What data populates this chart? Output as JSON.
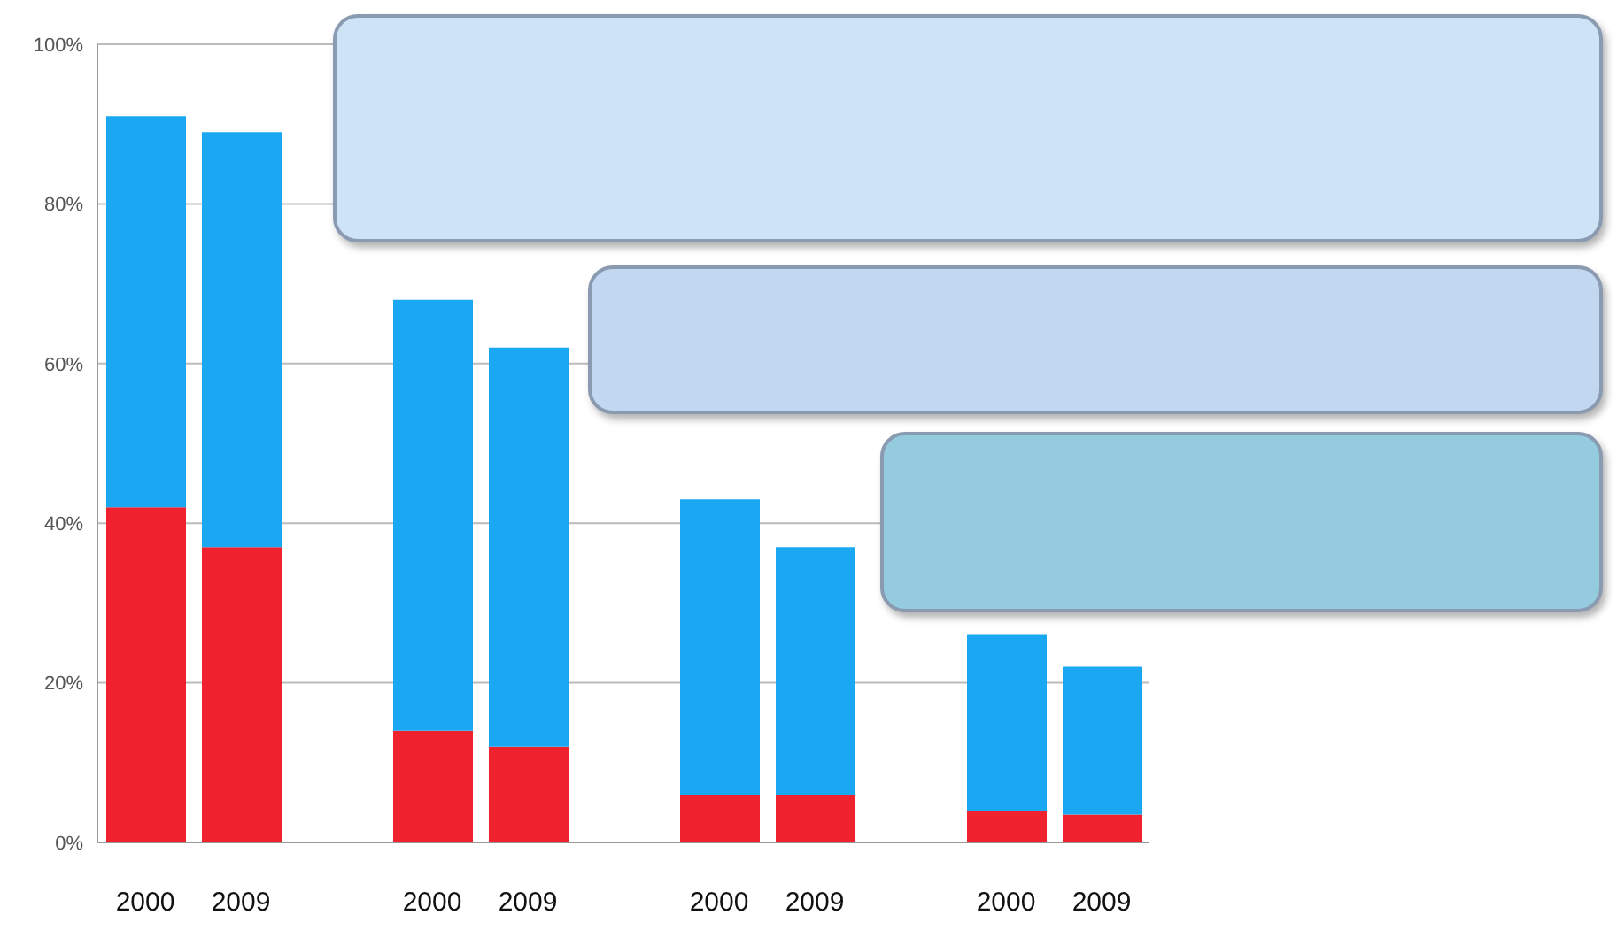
{
  "chart_data": {
    "type": "bar",
    "stacked": true,
    "categories": [
      "2000",
      "2009",
      null,
      "2000",
      "2009",
      null,
      "2000",
      "2009",
      null,
      "2000",
      "2009"
    ],
    "series": [
      {
        "color": "#f0222e",
        "values": [
          42,
          37,
          null,
          14,
          12,
          null,
          6,
          6,
          null,
          4,
          3.5
        ]
      },
      {
        "color": "#1ba8f2",
        "values": [
          49,
          52,
          null,
          54,
          50,
          null,
          37,
          31,
          null,
          22,
          18.5
        ]
      }
    ],
    "ylim": [
      0,
      100
    ],
    "yticks": [
      {
        "value": 0,
        "label": "0%"
      },
      {
        "value": 20,
        "label": "20%"
      },
      {
        "value": 40,
        "label": "40%"
      },
      {
        "value": 60,
        "label": "60%"
      },
      {
        "value": 80,
        "label": "80%"
      },
      {
        "value": 100,
        "label": "100%"
      }
    ],
    "grid": "y",
    "legend": false
  }
}
